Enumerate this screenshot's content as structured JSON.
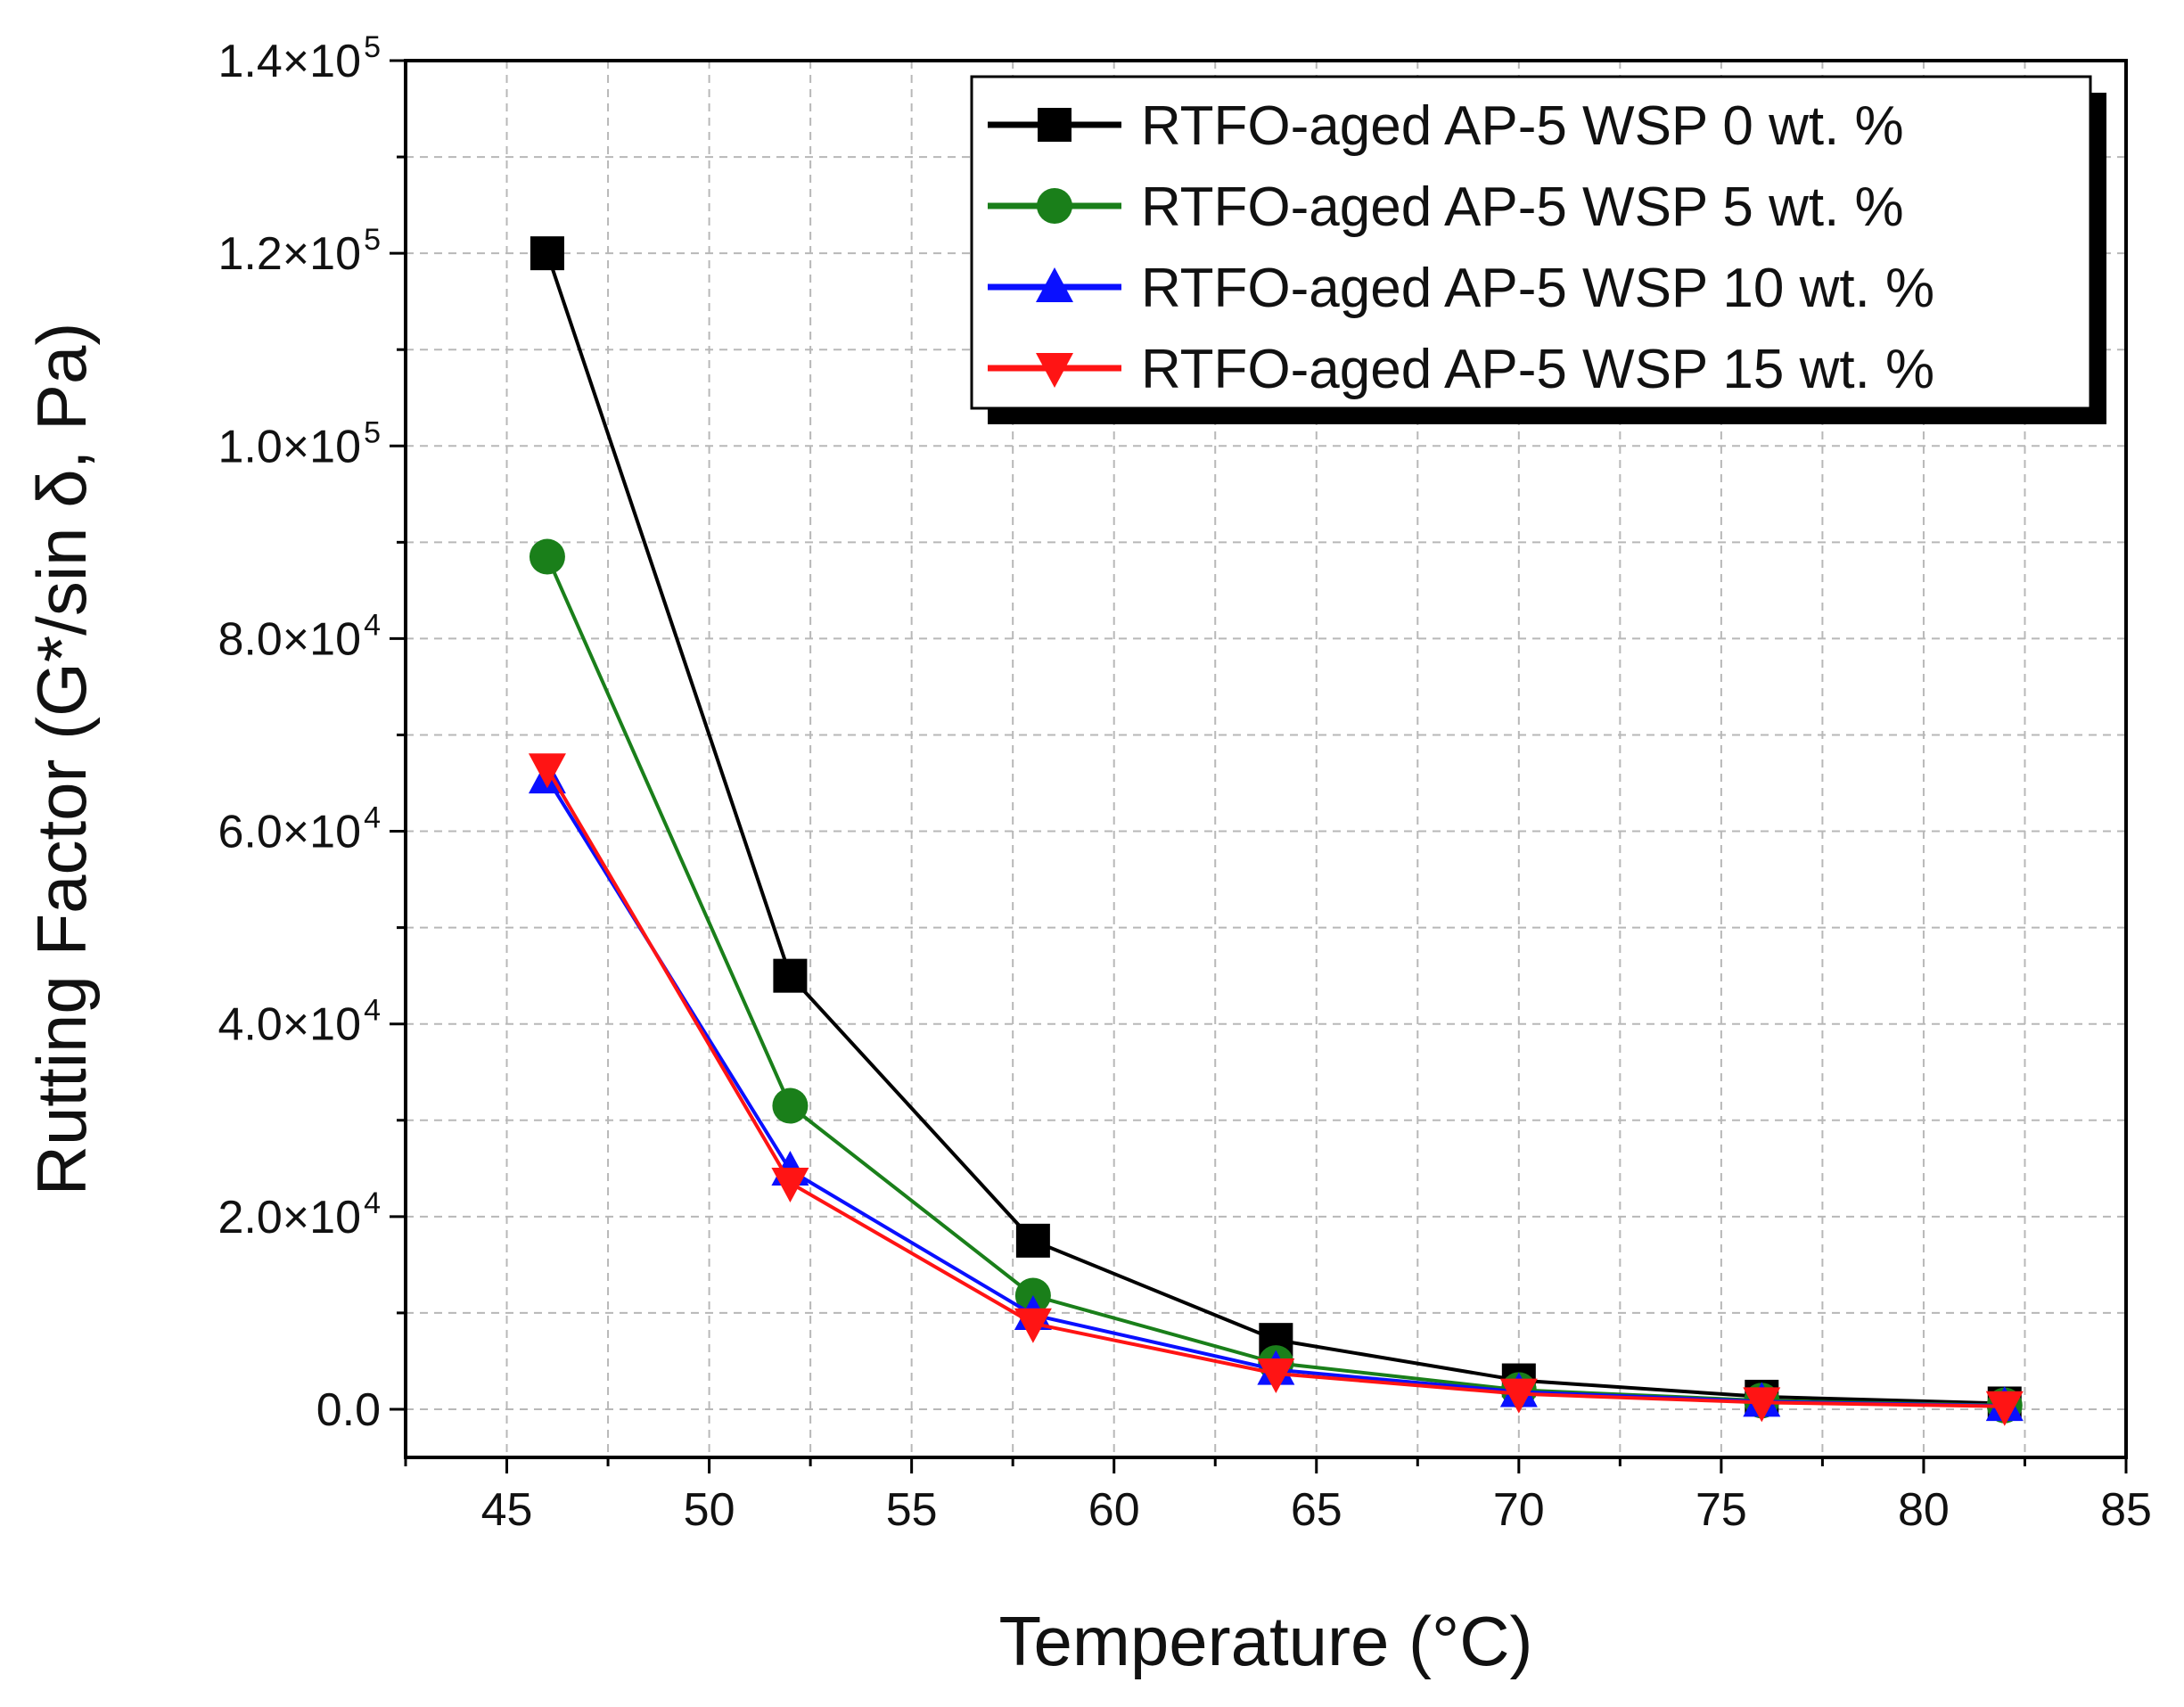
{
  "chart_data": {
    "type": "line",
    "title": "",
    "xlabel": "Temperature (°C)",
    "ylabel": "Rutting Factor (G*/sin δ, Pa)",
    "xlim": [
      42.5,
      85
    ],
    "ylim": [
      -5000,
      140000
    ],
    "grid": true,
    "legend_position": "top-right",
    "x": [
      46,
      52,
      58,
      64,
      70,
      76,
      82
    ],
    "x_ticks": [
      {
        "value": 45,
        "label": "45"
      },
      {
        "value": 50,
        "label": "50"
      },
      {
        "value": 55,
        "label": "55"
      },
      {
        "value": 60,
        "label": "60"
      },
      {
        "value": 65,
        "label": "65"
      },
      {
        "value": 70,
        "label": "70"
      },
      {
        "value": 75,
        "label": "75"
      },
      {
        "value": 80,
        "label": "80"
      },
      {
        "value": 85,
        "label": "85"
      }
    ],
    "y_ticks": [
      {
        "value": 0,
        "mantissa": "0.0",
        "exponent": ""
      },
      {
        "value": 20000,
        "mantissa": "2.0×10",
        "exponent": "4"
      },
      {
        "value": 40000,
        "mantissa": "4.0×10",
        "exponent": "4"
      },
      {
        "value": 60000,
        "mantissa": "6.0×10",
        "exponent": "4"
      },
      {
        "value": 80000,
        "mantissa": "8.0×10",
        "exponent": "4"
      },
      {
        "value": 100000,
        "mantissa": "1.0×10",
        "exponent": "5"
      },
      {
        "value": 120000,
        "mantissa": "1.2×10",
        "exponent": "5"
      },
      {
        "value": 140000,
        "mantissa": "1.4×10",
        "exponent": "5"
      }
    ],
    "series": [
      {
        "name": "RTFO-aged AP-5 WSP 0 wt. %",
        "color": "#000000",
        "marker": "square",
        "values": [
          120000,
          45000,
          17500,
          7200,
          3000,
          1300,
          600
        ]
      },
      {
        "name": "RTFO-aged AP-5 WSP 5 wt. %",
        "color": "#1a7f1a",
        "marker": "circle",
        "values": [
          88500,
          31500,
          11800,
          4800,
          2000,
          900,
          400
        ]
      },
      {
        "name": "RTFO-aged AP-5 WSP 10 wt. %",
        "color": "#0a10ff",
        "marker": "triangle-up",
        "values": [
          65500,
          24800,
          9800,
          4100,
          1800,
          800,
          350
        ]
      },
      {
        "name": "RTFO-aged AP-5 WSP 15 wt. %",
        "color": "#ff1414",
        "marker": "triangle-down",
        "values": [
          66500,
          23500,
          8900,
          3700,
          1600,
          700,
          300
        ]
      }
    ]
  }
}
